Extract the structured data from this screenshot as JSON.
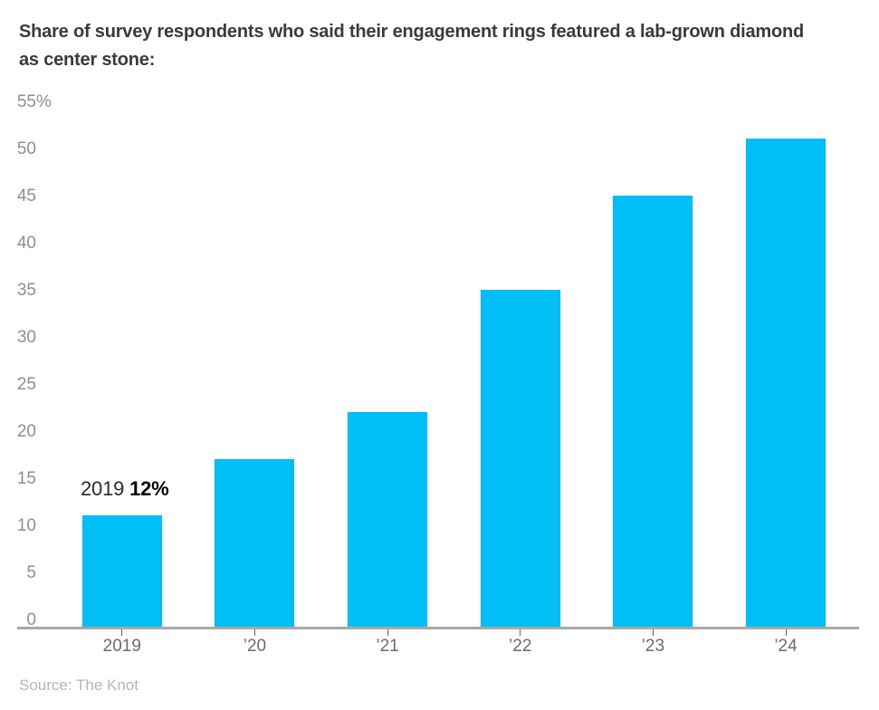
{
  "title": {
    "line1": "Share of survey respondents who said their engagement rings featured a lab-grown diamond",
    "line2": "as center stone:"
  },
  "annotation": {
    "year": "2019 ",
    "value": "12%"
  },
  "source": "Source: The Knot",
  "chart_data": {
    "type": "bar",
    "categories": [
      "2019",
      "’20",
      "’21",
      "’22",
      "’23",
      "’24"
    ],
    "values": [
      12,
      18,
      23,
      36,
      46,
      52
    ],
    "unit": "%",
    "title": "Share of survey respondents who said their engagement rings featured a lab-grown diamond as center stone:",
    "xlabel": "",
    "ylabel": "",
    "ylim": [
      0,
      55
    ],
    "yticks": [
      0,
      5,
      10,
      15,
      20,
      25,
      30,
      35,
      40,
      45,
      50,
      55
    ],
    "ytick_suffix": "%",
    "bar_color": "#00bff7",
    "grid": false,
    "legend": false,
    "annotation_text": "2019 12%"
  }
}
